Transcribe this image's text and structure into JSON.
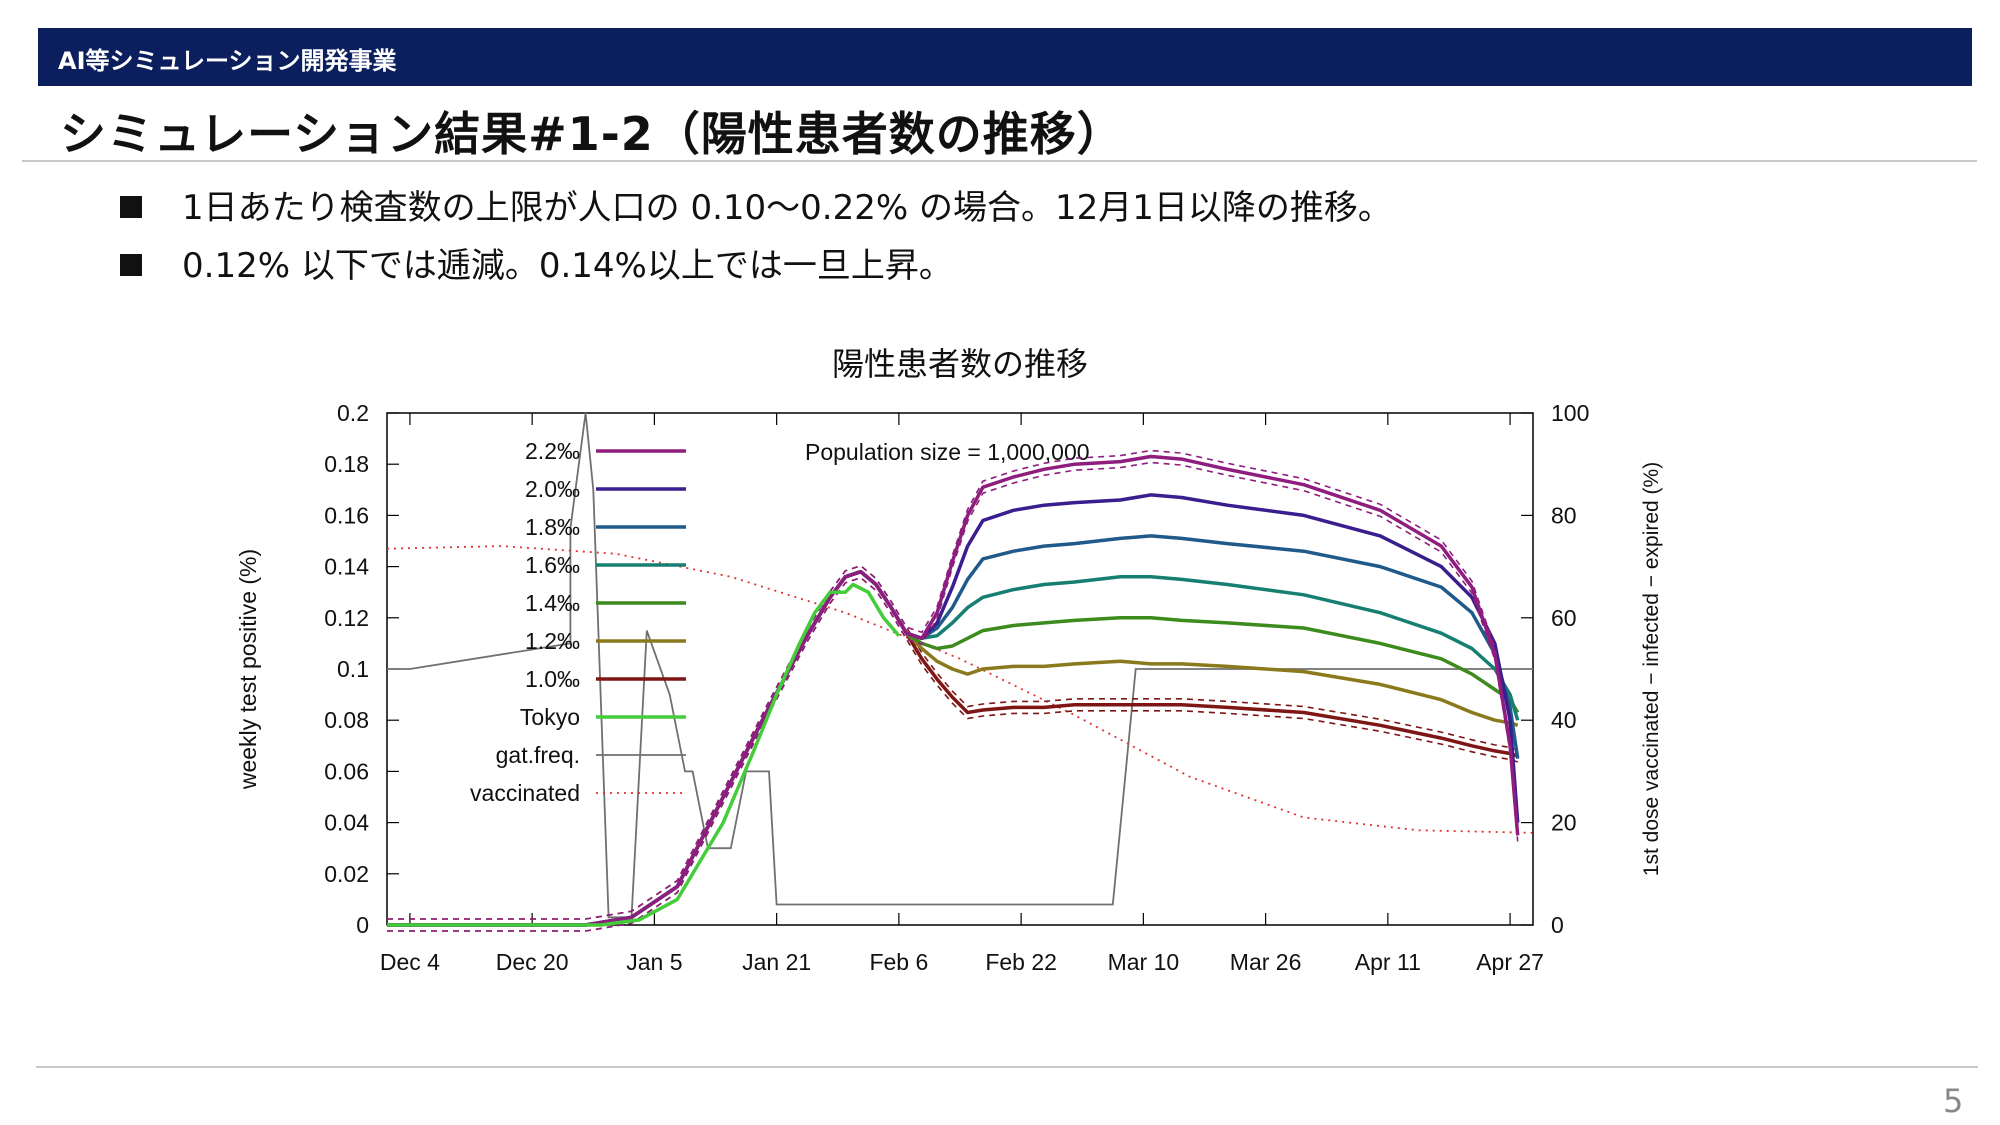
{
  "header": {
    "banner": "AI等シミュレーション開発事業",
    "title": "シミュレーション結果#1-2（陽性患者数の推移）"
  },
  "bullets": [
    "1日あたり検査数の上限が人口の 0.10〜0.22% の場合。12月1日以降の推移。",
    "0.12% 以下では逓減。0.14%以上では一旦上昇。"
  ],
  "page_number": "5",
  "colors": {
    "banner_bg": "#0b1f5e",
    "s22": "#8e1d7e",
    "s20": "#3a1d8e",
    "s18": "#1f5a8a",
    "s16": "#167f72",
    "s14": "#3d8a1d",
    "s12": "#8a7a1d",
    "s10": "#7e1616",
    "tokyo": "#44cc3a",
    "gat": "#707070",
    "vacc": "#e03030"
  },
  "chart_data": {
    "type": "line",
    "title": "陽性患者数の推移",
    "annotation": "Population size = 1,000,000",
    "ylabel": "weekly test positive (%)",
    "y2label": "1st dose vaccinated − infected − expired (%)",
    "ylim": [
      0,
      0.2
    ],
    "y2lim": [
      0,
      100
    ],
    "yticks": [
      "0",
      "0.02",
      "0.04",
      "0.06",
      "0.08",
      "0.1",
      "0.12",
      "0.14",
      "0.16",
      "0.18",
      "0.2"
    ],
    "y2ticks": [
      "0",
      "20",
      "40",
      "60",
      "80",
      "100"
    ],
    "xticks": [
      "Dec 4",
      "Dec 20",
      "Jan 5",
      "Jan 21",
      "Feb 6",
      "Feb 22",
      "Mar 10",
      "Mar 26",
      "Apr 11",
      "Apr 27"
    ],
    "x_unit": "days since Dec 1",
    "xlim": [
      0,
      150
    ],
    "legend_position": "top-left",
    "grid": false,
    "series": [
      {
        "name": "2.2‰",
        "color_key": "s22",
        "axis": "y",
        "dashed_envelope": true,
        "points": [
          [
            0,
            0
          ],
          [
            26,
            0
          ],
          [
            32,
            0.003
          ],
          [
            38,
            0.015
          ],
          [
            44,
            0.05
          ],
          [
            50,
            0.085
          ],
          [
            55,
            0.113
          ],
          [
            58,
            0.128
          ],
          [
            60,
            0.136
          ],
          [
            62,
            0.138
          ],
          [
            64,
            0.133
          ],
          [
            66,
            0.124
          ],
          [
            68,
            0.114
          ],
          [
            70,
            0.112
          ],
          [
            72,
            0.122
          ],
          [
            74,
            0.142
          ],
          [
            76,
            0.16
          ],
          [
            78,
            0.171
          ],
          [
            82,
            0.175
          ],
          [
            86,
            0.178
          ],
          [
            90,
            0.18
          ],
          [
            96,
            0.181
          ],
          [
            100,
            0.183
          ],
          [
            104,
            0.182
          ],
          [
            110,
            0.178
          ],
          [
            120,
            0.172
          ],
          [
            130,
            0.162
          ],
          [
            138,
            0.148
          ],
          [
            142,
            0.132
          ],
          [
            145,
            0.106
          ],
          [
            147,
            0.07
          ],
          [
            148,
            0.035
          ]
        ]
      },
      {
        "name": "2.0‰",
        "color_key": "s20",
        "axis": "y",
        "dashed_envelope": false,
        "points": [
          [
            0,
            0
          ],
          [
            26,
            0
          ],
          [
            32,
            0.003
          ],
          [
            38,
            0.015
          ],
          [
            44,
            0.05
          ],
          [
            50,
            0.085
          ],
          [
            55,
            0.113
          ],
          [
            58,
            0.128
          ],
          [
            60,
            0.136
          ],
          [
            62,
            0.138
          ],
          [
            64,
            0.133
          ],
          [
            66,
            0.124
          ],
          [
            68,
            0.114
          ],
          [
            70,
            0.112
          ],
          [
            72,
            0.118
          ],
          [
            74,
            0.132
          ],
          [
            76,
            0.148
          ],
          [
            78,
            0.158
          ],
          [
            82,
            0.162
          ],
          [
            86,
            0.164
          ],
          [
            90,
            0.165
          ],
          [
            96,
            0.166
          ],
          [
            100,
            0.168
          ],
          [
            104,
            0.167
          ],
          [
            110,
            0.164
          ],
          [
            120,
            0.16
          ],
          [
            130,
            0.152
          ],
          [
            138,
            0.14
          ],
          [
            142,
            0.128
          ],
          [
            145,
            0.11
          ],
          [
            147,
            0.08
          ],
          [
            148,
            0.04
          ]
        ]
      },
      {
        "name": "1.8‰",
        "color_key": "s18",
        "axis": "y",
        "dashed_envelope": false,
        "points": [
          [
            0,
            0
          ],
          [
            26,
            0
          ],
          [
            32,
            0.003
          ],
          [
            38,
            0.015
          ],
          [
            44,
            0.05
          ],
          [
            50,
            0.085
          ],
          [
            55,
            0.113
          ],
          [
            58,
            0.128
          ],
          [
            60,
            0.136
          ],
          [
            62,
            0.138
          ],
          [
            64,
            0.133
          ],
          [
            66,
            0.124
          ],
          [
            68,
            0.114
          ],
          [
            70,
            0.112
          ],
          [
            72,
            0.116
          ],
          [
            74,
            0.124
          ],
          [
            76,
            0.135
          ],
          [
            78,
            0.143
          ],
          [
            82,
            0.146
          ],
          [
            86,
            0.148
          ],
          [
            90,
            0.149
          ],
          [
            96,
            0.151
          ],
          [
            100,
            0.152
          ],
          [
            104,
            0.151
          ],
          [
            110,
            0.149
          ],
          [
            120,
            0.146
          ],
          [
            130,
            0.14
          ],
          [
            138,
            0.132
          ],
          [
            142,
            0.122
          ],
          [
            145,
            0.106
          ],
          [
            147,
            0.085
          ],
          [
            148,
            0.065
          ]
        ]
      },
      {
        "name": "1.6‰",
        "color_key": "s16",
        "axis": "y",
        "dashed_envelope": false,
        "points": [
          [
            0,
            0
          ],
          [
            26,
            0
          ],
          [
            32,
            0.003
          ],
          [
            38,
            0.015
          ],
          [
            44,
            0.05
          ],
          [
            50,
            0.085
          ],
          [
            55,
            0.113
          ],
          [
            58,
            0.128
          ],
          [
            60,
            0.136
          ],
          [
            62,
            0.138
          ],
          [
            64,
            0.133
          ],
          [
            66,
            0.124
          ],
          [
            68,
            0.114
          ],
          [
            70,
            0.112
          ],
          [
            72,
            0.113
          ],
          [
            74,
            0.118
          ],
          [
            76,
            0.124
          ],
          [
            78,
            0.128
          ],
          [
            82,
            0.131
          ],
          [
            86,
            0.133
          ],
          [
            90,
            0.134
          ],
          [
            96,
            0.136
          ],
          [
            100,
            0.136
          ],
          [
            104,
            0.135
          ],
          [
            110,
            0.133
          ],
          [
            120,
            0.129
          ],
          [
            130,
            0.122
          ],
          [
            138,
            0.114
          ],
          [
            142,
            0.108
          ],
          [
            145,
            0.1
          ],
          [
            147,
            0.09
          ],
          [
            148,
            0.08
          ]
        ]
      },
      {
        "name": "1.4‰",
        "color_key": "s14",
        "axis": "y",
        "dashed_envelope": false,
        "points": [
          [
            0,
            0
          ],
          [
            26,
            0
          ],
          [
            32,
            0.003
          ],
          [
            38,
            0.015
          ],
          [
            44,
            0.05
          ],
          [
            50,
            0.085
          ],
          [
            55,
            0.113
          ],
          [
            58,
            0.128
          ],
          [
            60,
            0.136
          ],
          [
            62,
            0.138
          ],
          [
            64,
            0.133
          ],
          [
            66,
            0.124
          ],
          [
            68,
            0.114
          ],
          [
            70,
            0.11
          ],
          [
            72,
            0.108
          ],
          [
            74,
            0.109
          ],
          [
            76,
            0.112
          ],
          [
            78,
            0.115
          ],
          [
            82,
            0.117
          ],
          [
            86,
            0.118
          ],
          [
            90,
            0.119
          ],
          [
            96,
            0.12
          ],
          [
            100,
            0.12
          ],
          [
            104,
            0.119
          ],
          [
            110,
            0.118
          ],
          [
            120,
            0.116
          ],
          [
            130,
            0.11
          ],
          [
            138,
            0.104
          ],
          [
            142,
            0.098
          ],
          [
            145,
            0.092
          ],
          [
            147,
            0.088
          ],
          [
            148,
            0.083
          ]
        ]
      },
      {
        "name": "1.2‰",
        "color_key": "s12",
        "axis": "y",
        "dashed_envelope": false,
        "points": [
          [
            0,
            0
          ],
          [
            26,
            0
          ],
          [
            32,
            0.003
          ],
          [
            38,
            0.015
          ],
          [
            44,
            0.05
          ],
          [
            50,
            0.085
          ],
          [
            55,
            0.113
          ],
          [
            58,
            0.128
          ],
          [
            60,
            0.136
          ],
          [
            62,
            0.138
          ],
          [
            64,
            0.133
          ],
          [
            66,
            0.124
          ],
          [
            68,
            0.114
          ],
          [
            70,
            0.108
          ],
          [
            72,
            0.103
          ],
          [
            74,
            0.1
          ],
          [
            76,
            0.098
          ],
          [
            78,
            0.1
          ],
          [
            82,
            0.101
          ],
          [
            86,
            0.101
          ],
          [
            90,
            0.102
          ],
          [
            96,
            0.103
          ],
          [
            100,
            0.102
          ],
          [
            104,
            0.102
          ],
          [
            110,
            0.101
          ],
          [
            120,
            0.099
          ],
          [
            130,
            0.094
          ],
          [
            138,
            0.088
          ],
          [
            142,
            0.083
          ],
          [
            145,
            0.08
          ],
          [
            147,
            0.079
          ],
          [
            148,
            0.078
          ]
        ]
      },
      {
        "name": "1.0‰",
        "color_key": "s10",
        "axis": "y",
        "dashed_envelope": true,
        "points": [
          [
            0,
            0
          ],
          [
            26,
            0
          ],
          [
            32,
            0.003
          ],
          [
            38,
            0.015
          ],
          [
            44,
            0.05
          ],
          [
            50,
            0.085
          ],
          [
            55,
            0.113
          ],
          [
            58,
            0.128
          ],
          [
            60,
            0.136
          ],
          [
            62,
            0.138
          ],
          [
            64,
            0.133
          ],
          [
            66,
            0.124
          ],
          [
            68,
            0.114
          ],
          [
            70,
            0.104
          ],
          [
            72,
            0.096
          ],
          [
            74,
            0.089
          ],
          [
            76,
            0.083
          ],
          [
            78,
            0.084
          ],
          [
            82,
            0.085
          ],
          [
            86,
            0.085
          ],
          [
            90,
            0.086
          ],
          [
            96,
            0.086
          ],
          [
            100,
            0.086
          ],
          [
            104,
            0.086
          ],
          [
            110,
            0.085
          ],
          [
            120,
            0.083
          ],
          [
            130,
            0.078
          ],
          [
            138,
            0.073
          ],
          [
            142,
            0.07
          ],
          [
            145,
            0.068
          ],
          [
            147,
            0.067
          ],
          [
            148,
            0.066
          ]
        ]
      },
      {
        "name": "Tokyo",
        "color_key": "tokyo",
        "axis": "y",
        "dashed_envelope": false,
        "points": [
          [
            0,
            0
          ],
          [
            28,
            0
          ],
          [
            33,
            0.002
          ],
          [
            38,
            0.01
          ],
          [
            44,
            0.04
          ],
          [
            48,
            0.068
          ],
          [
            51,
            0.09
          ],
          [
            54,
            0.11
          ],
          [
            56,
            0.122
          ],
          [
            58,
            0.13
          ],
          [
            60,
            0.13
          ],
          [
            61,
            0.133
          ],
          [
            63,
            0.13
          ],
          [
            65,
            0.12
          ],
          [
            67,
            0.113
          ]
        ]
      },
      {
        "name": "gat.freq.",
        "color_key": "gat",
        "axis": "y",
        "dashed_envelope": false,
        "points": [
          [
            0,
            0.1
          ],
          [
            3,
            0.1
          ],
          [
            24,
            0.11
          ],
          [
            24,
            0.155
          ],
          [
            26,
            0.2
          ],
          [
            27,
            0.17
          ],
          [
            29,
            0.003
          ],
          [
            32,
            0.003
          ],
          [
            34,
            0.115
          ],
          [
            37,
            0.09
          ],
          [
            39,
            0.06
          ],
          [
            40,
            0.06
          ],
          [
            42,
            0.03
          ],
          [
            45,
            0.03
          ],
          [
            47,
            0.06
          ],
          [
            50,
            0.06
          ],
          [
            51,
            0.008
          ],
          [
            95,
            0.008
          ],
          [
            98,
            0.1
          ],
          [
            150,
            0.1
          ]
        ]
      },
      {
        "name": "vaccinated",
        "color_key": "vacc",
        "axis": "y2",
        "dashed_envelope": false,
        "points": [
          [
            0,
            73.5
          ],
          [
            15,
            74
          ],
          [
            30,
            72.5
          ],
          [
            45,
            68
          ],
          [
            60,
            61
          ],
          [
            75,
            52
          ],
          [
            90,
            41
          ],
          [
            105,
            29
          ],
          [
            120,
            21
          ],
          [
            135,
            18.5
          ],
          [
            150,
            18
          ]
        ]
      }
    ]
  }
}
